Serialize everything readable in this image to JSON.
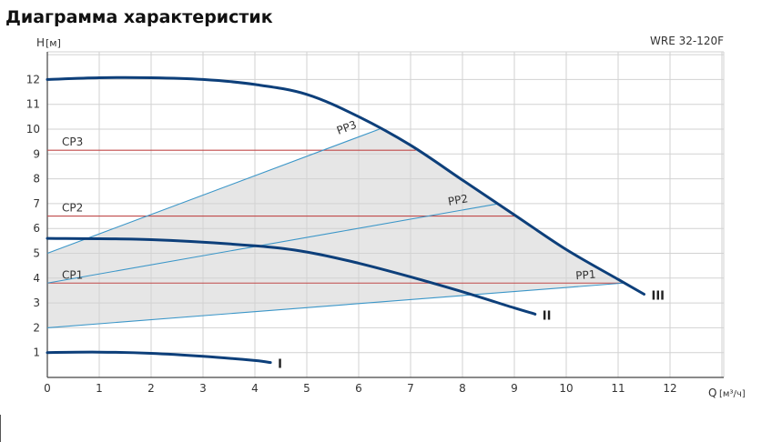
{
  "chart_data": {
    "type": "line",
    "title": "Диаграмма характеристик",
    "model": "WRE 32-120F",
    "xlabel": "Q",
    "xunit": "[м³/ч]",
    "ylabel": "H",
    "yunit": "[м]",
    "xlim": [
      0,
      13
    ],
    "ylim": [
      0,
      13
    ],
    "x_ticks": [
      "0",
      "1",
      "2",
      "3",
      "4",
      "5",
      "6",
      "7",
      "8",
      "9",
      "10",
      "11",
      "12"
    ],
    "y_ticks": [
      "1",
      "2",
      "3",
      "4",
      "5",
      "6",
      "7",
      "8",
      "9",
      "10",
      "11",
      "12"
    ],
    "grid": true,
    "speed_curves": [
      {
        "name": "I",
        "x": [
          0,
          1,
          2,
          3,
          4,
          4.3
        ],
        "y": [
          1.0,
          1.02,
          0.97,
          0.85,
          0.68,
          0.6
        ]
      },
      {
        "name": "II",
        "x": [
          0,
          2,
          4,
          5,
          6,
          7,
          8,
          9,
          9.4
        ],
        "y": [
          5.6,
          5.55,
          5.3,
          5.05,
          4.6,
          4.05,
          3.45,
          2.8,
          2.55
        ]
      },
      {
        "name": "III",
        "x": [
          0,
          1,
          2,
          3,
          4,
          5,
          6,
          7,
          8,
          9,
          10,
          11,
          11.5
        ],
        "y": [
          12.0,
          12.07,
          12.07,
          12.0,
          11.8,
          11.4,
          10.5,
          9.35,
          7.95,
          6.55,
          5.15,
          3.95,
          3.35
        ]
      }
    ],
    "pp_lines": [
      {
        "name": "PP1",
        "x": [
          0,
          11.1
        ],
        "y": [
          2.0,
          3.8
        ]
      },
      {
        "name": "PP2",
        "x": [
          0,
          8.7
        ],
        "y": [
          3.8,
          7.0
        ]
      },
      {
        "name": "PP3",
        "x": [
          0,
          6.4
        ],
        "y": [
          5.0,
          10.0
        ]
      }
    ],
    "cp_lines": [
      {
        "name": "CP1",
        "y": 3.8,
        "x_end": 11.1
      },
      {
        "name": "CP2",
        "y": 6.5,
        "x_end": 9.0
      },
      {
        "name": "CP3",
        "y": 9.15,
        "x_end": 7.1
      }
    ],
    "colors": {
      "speed_curve": "#0d3f7a",
      "pp_line": "#3b96c8",
      "cp_line": "#c04a4a",
      "grid": "#d2d2d2",
      "region_fill": "#e6e6e6",
      "axis": "#444444"
    }
  }
}
